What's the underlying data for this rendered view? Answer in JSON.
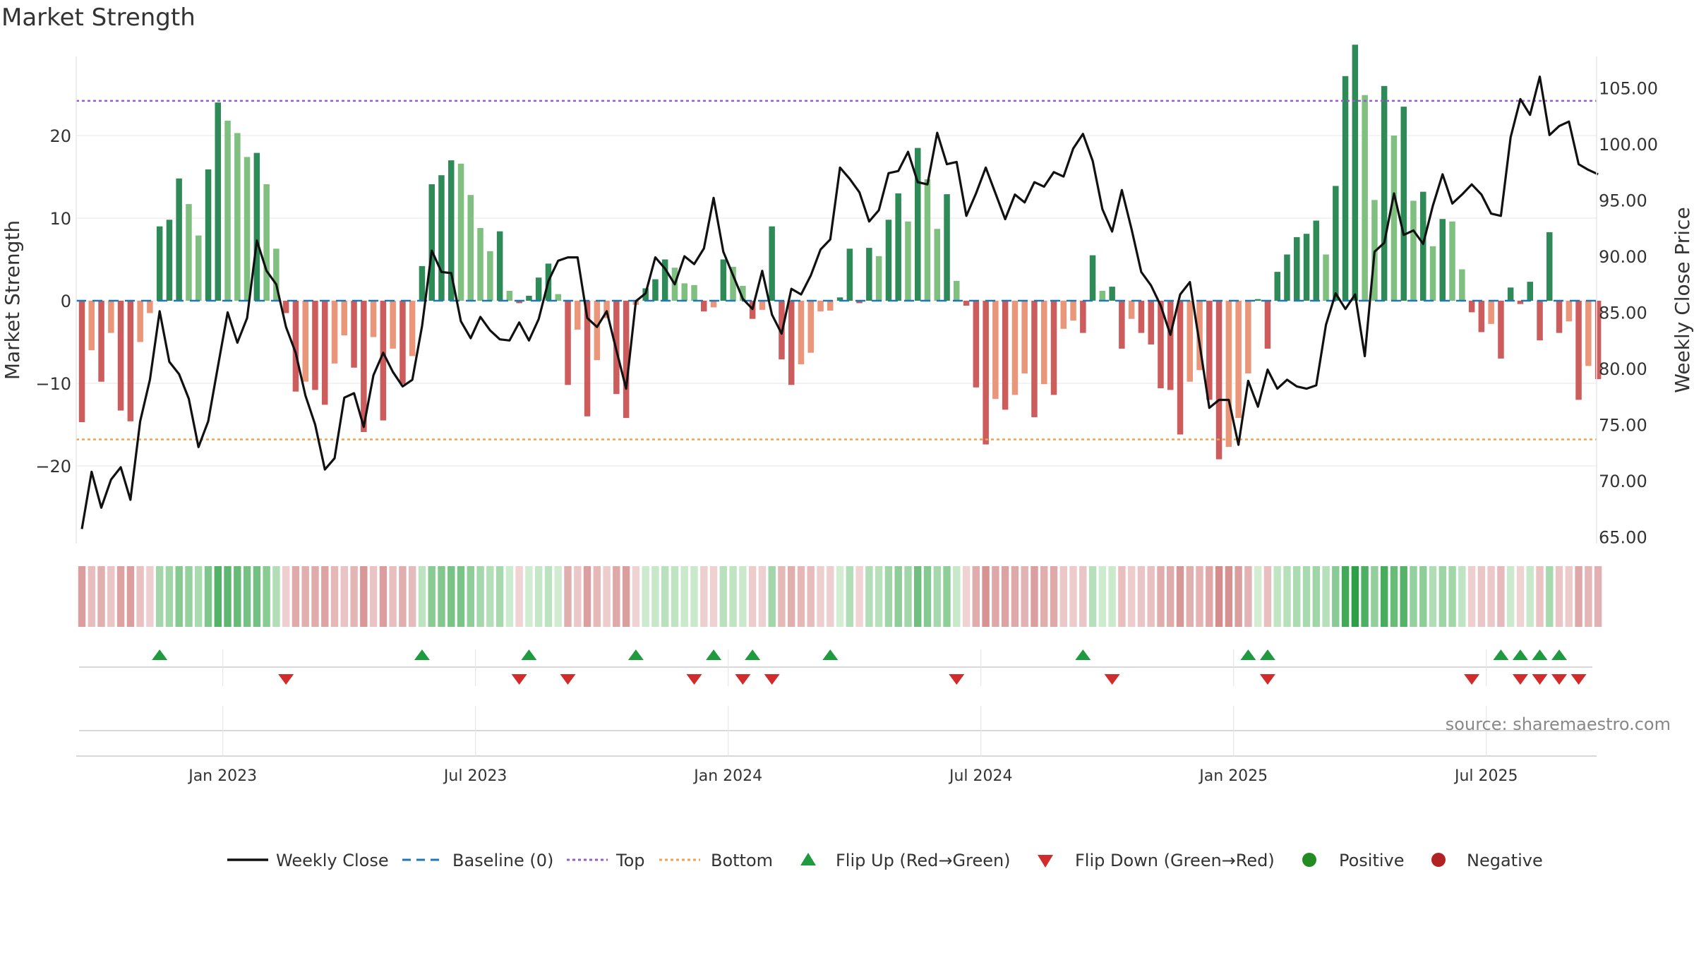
{
  "chart_data": {
    "type": "bar",
    "title": "Market Strength",
    "ylabel_left": "Market Strength",
    "ylabel_right": "Weekly Close Price",
    "source": "source: sharemaestro.com",
    "left_axis": {
      "ylim": [
        -30,
        30
      ],
      "ticks": [
        20,
        10,
        0,
        -10,
        -20
      ],
      "tick_labels": [
        "20",
        "10",
        "0",
        "−10",
        "−20"
      ]
    },
    "right_axis": {
      "ylim": [
        63.5,
        106.5
      ],
      "ticks": [
        105,
        100,
        95,
        90,
        85,
        80,
        75,
        70,
        65
      ],
      "tick_labels": [
        "105.00",
        "100.00",
        "95.00",
        "90.00",
        "85.00",
        "80.00",
        "75.00",
        "70.00",
        "65.00"
      ]
    },
    "x_axis": {
      "tick_labels": [
        "Jan 2023",
        "Jul 2023",
        "Jan 2024",
        "Jul 2024",
        "Jan 2025",
        "Jul 2025"
      ],
      "tick_weeks": [
        14.5,
        40.5,
        66.5,
        92.5,
        118.5,
        144.5
      ],
      "n_weeks": 157
    },
    "reference_lines": {
      "top": 24.2,
      "bottom": -16.8,
      "baseline": 0
    },
    "strength": [
      -14.7,
      -6,
      -9.8,
      -3.9,
      -13.3,
      -14.6,
      -5,
      -1.5,
      9,
      9.8,
      14.8,
      11.7,
      7.9,
      15.9,
      24,
      21.8,
      20.3,
      17.4,
      17.9,
      14.1,
      6.3,
      -1.5,
      -11,
      -9.8,
      -10.8,
      -12.6,
      -7.6,
      -4.2,
      -8.1,
      -15.9,
      -4.4,
      -14.5,
      -5.8,
      -10.1,
      -6.7,
      4.2,
      14.1,
      15.2,
      17,
      16.6,
      12.8,
      8.8,
      6,
      8.4,
      1.2,
      -0.3,
      0.6,
      2.8,
      4.5,
      0.8,
      -10.2,
      -3.5,
      -14,
      -7.2,
      -2.1,
      -11.3,
      -14.2,
      -0.5,
      1.5,
      2.6,
      5,
      4,
      2.1,
      1.9,
      -1.3,
      -0.8,
      5,
      4.1,
      1.8,
      -2.2,
      -1.1,
      9,
      -7.1,
      -10.2,
      -7.7,
      -6.3,
      -1.3,
      -1.2,
      0.4,
      6.3,
      -0.3,
      6.4,
      5.4,
      9.8,
      13,
      9.6,
      18.5,
      14.7,
      8.7,
      12.9,
      2.4,
      -0.6,
      -10.5,
      -17.4,
      -11.9,
      -13.2,
      -11.4,
      -8.8,
      -14.1,
      -10.1,
      -11.4,
      -3.4,
      -2.4,
      -3.9,
      5.5,
      1.2,
      1.7,
      -5.8,
      -2.2,
      -3.9,
      -5.3,
      -10.6,
      -10.8,
      -16.2,
      -9.8,
      -8.4,
      -12,
      -19.2,
      -17.7,
      -14.2,
      -8.8,
      0.2,
      -5.8,
      3.5,
      5.6,
      7.7,
      8.1,
      9.7,
      5.6,
      13.9,
      27.2,
      31,
      24.9,
      12.2,
      26,
      20,
      23.5,
      12.1,
      13.2,
      6.6,
      9.9,
      9.6,
      3.8,
      -1.4,
      -3.8,
      -2.8,
      -7,
      1.6,
      -0.4,
      2.3,
      -4.8,
      8.3,
      -3.9,
      -2.5,
      -12,
      -7.9,
      -9.5
    ],
    "weekly_close": [
      65.7,
      70.8,
      67.6,
      70.1,
      71.2,
      68.3,
      75.3,
      79,
      85.1,
      80.6,
      79.5,
      77.3,
      73,
      75.3,
      80.2,
      85,
      82.3,
      84.5,
      91.4,
      88.7,
      87.5,
      83.7,
      81.4,
      77.6,
      75,
      71,
      72,
      77.4,
      77.8,
      74.8,
      79.4,
      81.4,
      79.7,
      78.4,
      79,
      83.8,
      90.5,
      88.6,
      88.5,
      84.2,
      82.7,
      84.6,
      83.4,
      82.6,
      82.5,
      84.1,
      82.5,
      84.4,
      87.8,
      89.6,
      89.9,
      89.9,
      84.5,
      83.7,
      85.1,
      81.6,
      78.2,
      86,
      86.7,
      89.9,
      88.9,
      87.5,
      90,
      89.3,
      90.7,
      95.2,
      90.4,
      88.3,
      86.2,
      85.3,
      88.7,
      84.8,
      83.1,
      87.1,
      86.6,
      88.3,
      90.6,
      91.5,
      97.9,
      96.9,
      95.7,
      93.1,
      94.1,
      97.4,
      97.6,
      99.3,
      96.6,
      96.4,
      101,
      98.2,
      98.4,
      93.6,
      95.6,
      97.9,
      95.6,
      93.3,
      95.5,
      94.8,
      96.6,
      96.2,
      97.5,
      97.1,
      99.6,
      100.9,
      98.5,
      94.2,
      92.2,
      95.9,
      92.4,
      88.6,
      87.4,
      85.6,
      83,
      86.6,
      87.7,
      82.2,
      76.5,
      77.2,
      77.2,
      73.2,
      78.9,
      76.6,
      79.9,
      78.2,
      79,
      78.4,
      78.2,
      78.5,
      83.9,
      86.7,
      85.3,
      86.6,
      81.1,
      90.4,
      91.2,
      95.6,
      91.9,
      92.3,
      91.1,
      94.5,
      97.3,
      94.7,
      95.5,
      96.4,
      95.5,
      93.8,
      93.6,
      100.6,
      104,
      102.6,
      106,
      100.8,
      101.6,
      102,
      98.2,
      97.7,
      97.3
    ],
    "flip_up_weeks": [
      8,
      35,
      46,
      57,
      65,
      69,
      77,
      103,
      120,
      122,
      146,
      148,
      150,
      152
    ],
    "flip_down_weeks": [
      21,
      45,
      50,
      63,
      68,
      71,
      90,
      106,
      122,
      143,
      148,
      150,
      152,
      154
    ],
    "legend": [
      "Weekly Close",
      "Baseline (0)",
      "Top",
      "Bottom",
      "Flip Up (Red→Green)",
      "Flip Down (Green→Red)",
      "Positive",
      "Negative"
    ],
    "colors": {
      "pos_dark": "#2e8b57",
      "pos_light": "#7fbf7f",
      "neg_dark": "#cd5c5c",
      "neg_light": "#e9967a",
      "line": "#111111",
      "baseline": "#1f77b4",
      "top": "#9b59d0",
      "bottom": "#f0a050",
      "flip_up": "#1f9a3f",
      "flip_down": "#d12b2b",
      "positive": "#228b22",
      "negative": "#b22222"
    }
  }
}
